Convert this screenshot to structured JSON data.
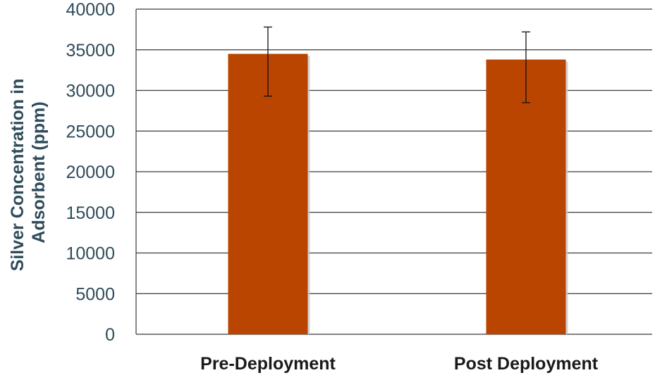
{
  "chart_data": {
    "type": "bar",
    "title": "",
    "xlabel": "",
    "ylabel_lines": [
      "Silver Concentration in",
      "Adsorbent (ppm)"
    ],
    "categories": [
      "Pre-Deployment",
      "Post Deployment"
    ],
    "values": [
      34500,
      33800
    ],
    "error_bars": [
      {
        "low": 29300,
        "high": 37800
      },
      {
        "low": 28500,
        "high": 37200
      }
    ],
    "ylim": [
      0,
      40000
    ],
    "yticks": [
      0,
      5000,
      10000,
      15000,
      20000,
      25000,
      30000,
      35000,
      40000
    ],
    "grid": true,
    "legend": "none",
    "colors": {
      "bar": "#b94500",
      "bar_shadow": "#c8c8c8",
      "grid": "#3a3a3a",
      "axis_text": "#2f4c5a",
      "error_bar": "#111111"
    }
  }
}
